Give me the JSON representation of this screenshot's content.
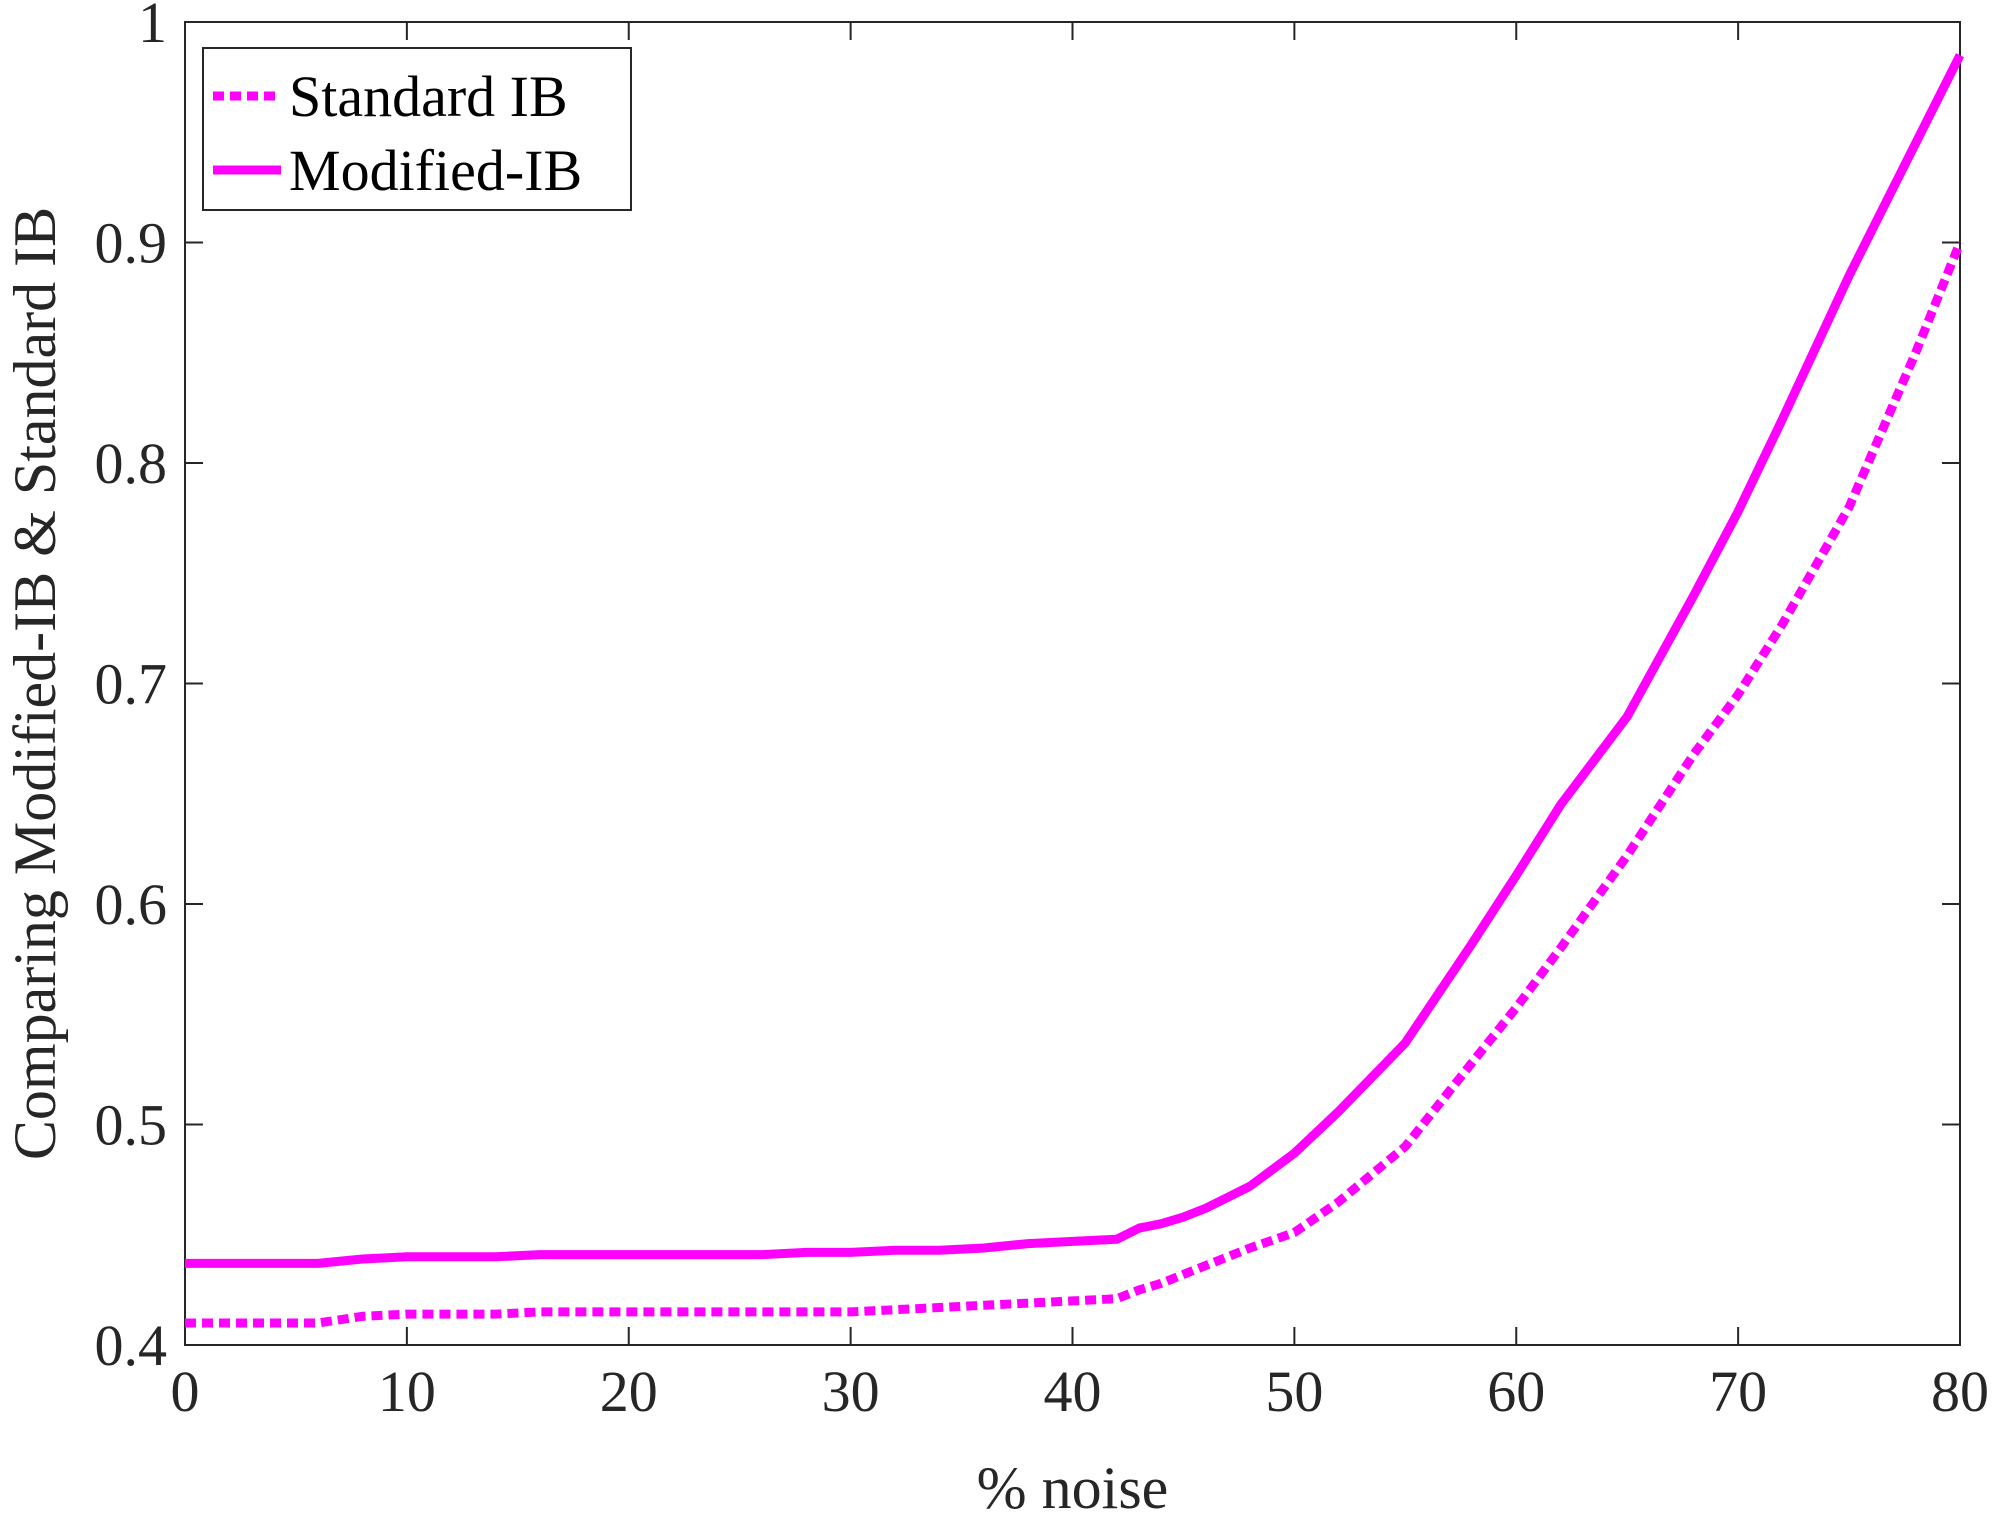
{
  "chart_data": {
    "type": "line",
    "xlabel": "% noise",
    "ylabel": "Comparing Modified-IB & Standard IB",
    "xlim": [
      0,
      80
    ],
    "ylim": [
      0.4,
      1.0
    ],
    "xticks": [
      0,
      10,
      20,
      30,
      40,
      50,
      60,
      70,
      80
    ],
    "yticks": [
      0.4,
      0.5,
      0.6,
      0.7,
      0.8,
      0.9,
      1.0
    ],
    "xtick_labels": [
      "0",
      "10",
      "20",
      "30",
      "40",
      "50",
      "60",
      "70",
      "80"
    ],
    "ytick_labels": [
      "0.4",
      "0.5",
      "0.6",
      "0.7",
      "0.8",
      "0.9",
      "1"
    ],
    "grid": false,
    "legend_position": "top-left",
    "series": [
      {
        "name": "Standard IB",
        "style": "dotted",
        "color": "#FF00FF",
        "x": [
          0,
          2,
          4,
          6,
          8,
          10,
          12,
          14,
          16,
          18,
          20,
          22,
          24,
          26,
          28,
          30,
          32,
          34,
          36,
          38,
          40,
          42,
          43,
          44,
          45,
          46,
          47,
          48,
          50,
          52,
          55,
          58,
          60,
          62,
          65,
          68,
          70,
          72,
          75,
          78,
          80
        ],
        "y": [
          0.41,
          0.41,
          0.41,
          0.41,
          0.413,
          0.414,
          0.414,
          0.414,
          0.415,
          0.415,
          0.415,
          0.415,
          0.415,
          0.415,
          0.415,
          0.415,
          0.416,
          0.417,
          0.418,
          0.419,
          0.42,
          0.421,
          0.425,
          0.428,
          0.432,
          0.436,
          0.44,
          0.444,
          0.451,
          0.465,
          0.49,
          0.528,
          0.553,
          0.58,
          0.622,
          0.668,
          0.695,
          0.727,
          0.78,
          0.85,
          0.9
        ]
      },
      {
        "name": "Modified-IB",
        "style": "solid",
        "color": "#FF00FF",
        "x": [
          0,
          2,
          4,
          6,
          8,
          10,
          12,
          14,
          16,
          18,
          20,
          22,
          24,
          26,
          28,
          30,
          32,
          34,
          36,
          38,
          40,
          42,
          43,
          44,
          45,
          46,
          47,
          48,
          50,
          52,
          55,
          58,
          60,
          62,
          65,
          68,
          70,
          72,
          75,
          78,
          80
        ],
        "y": [
          0.437,
          0.437,
          0.437,
          0.437,
          0.439,
          0.44,
          0.44,
          0.44,
          0.441,
          0.441,
          0.441,
          0.441,
          0.441,
          0.441,
          0.442,
          0.442,
          0.443,
          0.443,
          0.444,
          0.446,
          0.447,
          0.448,
          0.453,
          0.455,
          0.458,
          0.462,
          0.467,
          0.472,
          0.487,
          0.506,
          0.537,
          0.582,
          0.613,
          0.645,
          0.685,
          0.74,
          0.778,
          0.82,
          0.885,
          0.945,
          0.985
        ]
      }
    ]
  }
}
